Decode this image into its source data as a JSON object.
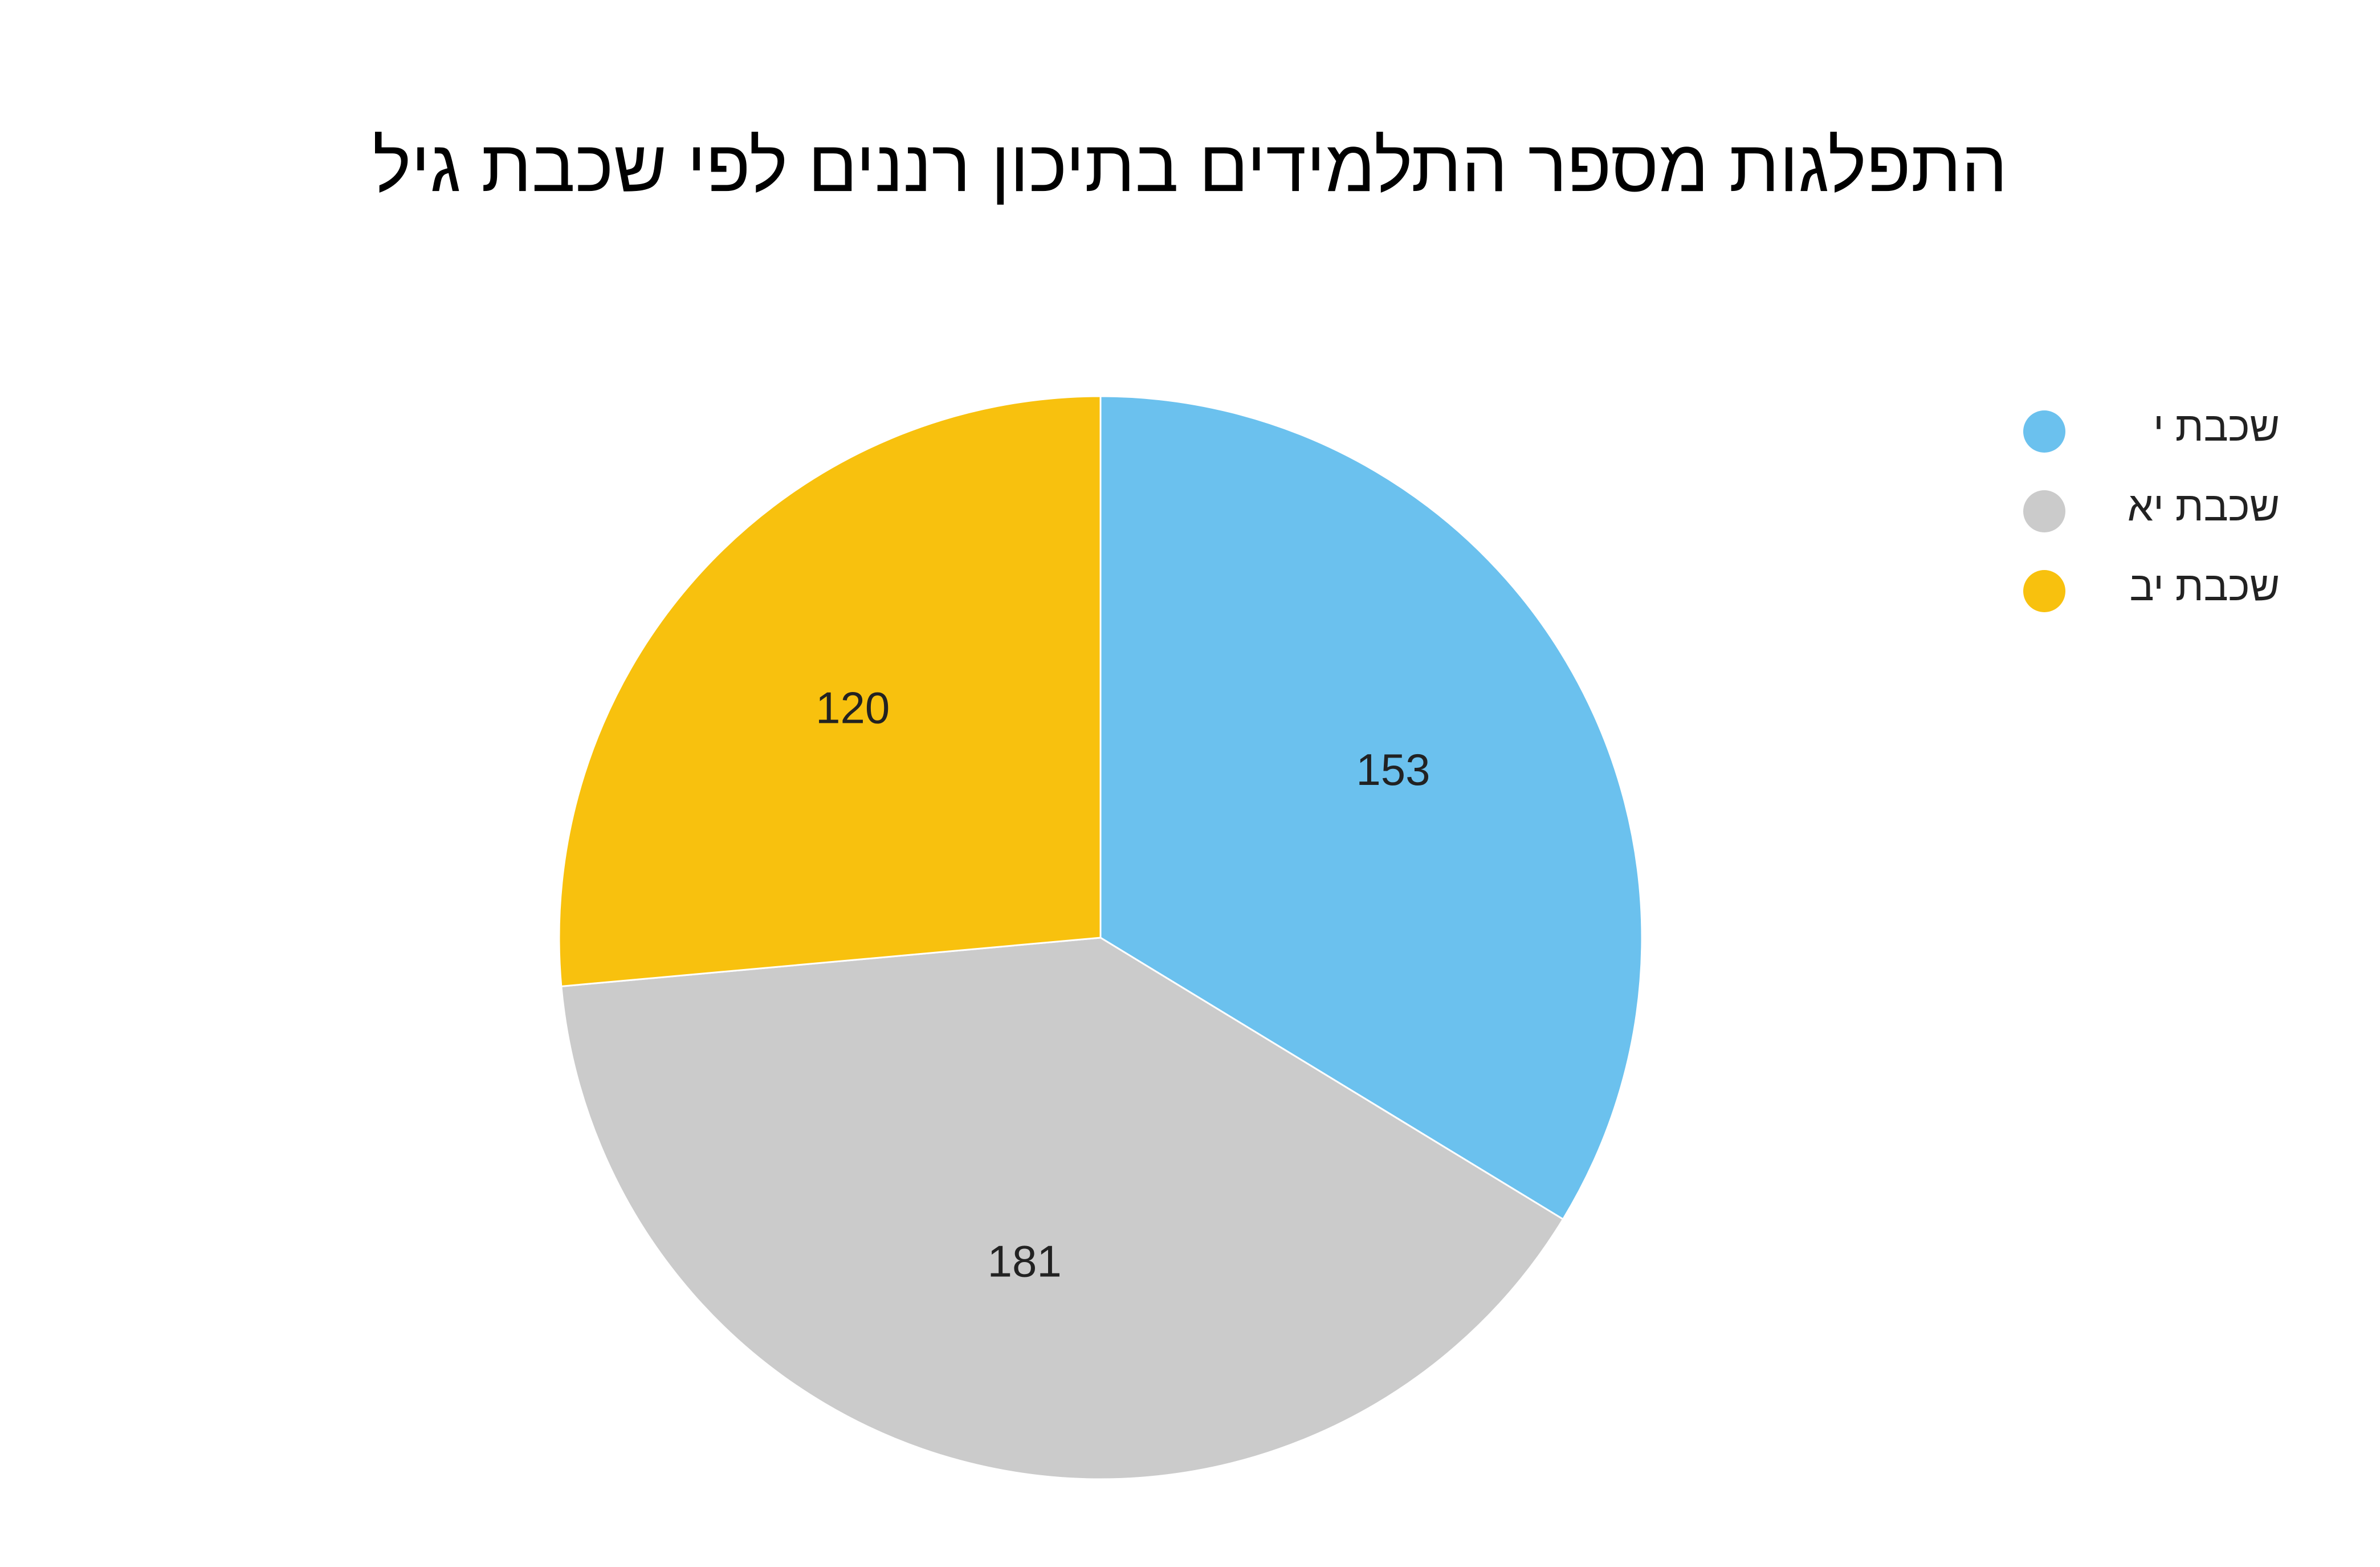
{
  "chart_data": {
    "type": "pie",
    "title": "התפלגות מספר התלמידים בתיכון רננים לפי שכבת גיל",
    "categories": [
      "שכבת י",
      "שכבת יא",
      "שכבת יב"
    ],
    "values": [
      153,
      181,
      120
    ],
    "colors": [
      "#6BC1EE",
      "#CBCBCB",
      "#F8C10E"
    ],
    "data_labels": [
      "153",
      "181",
      "120"
    ],
    "legend_position": "top-right"
  },
  "legend": {
    "items": [
      {
        "label": "שכבת י  ",
        "color": "#6BC1EE"
      },
      {
        "label": "שכבת יא",
        "color": "#CBCBCB"
      },
      {
        "label": "שכבת יב",
        "color": "#F8C10E"
      }
    ]
  }
}
